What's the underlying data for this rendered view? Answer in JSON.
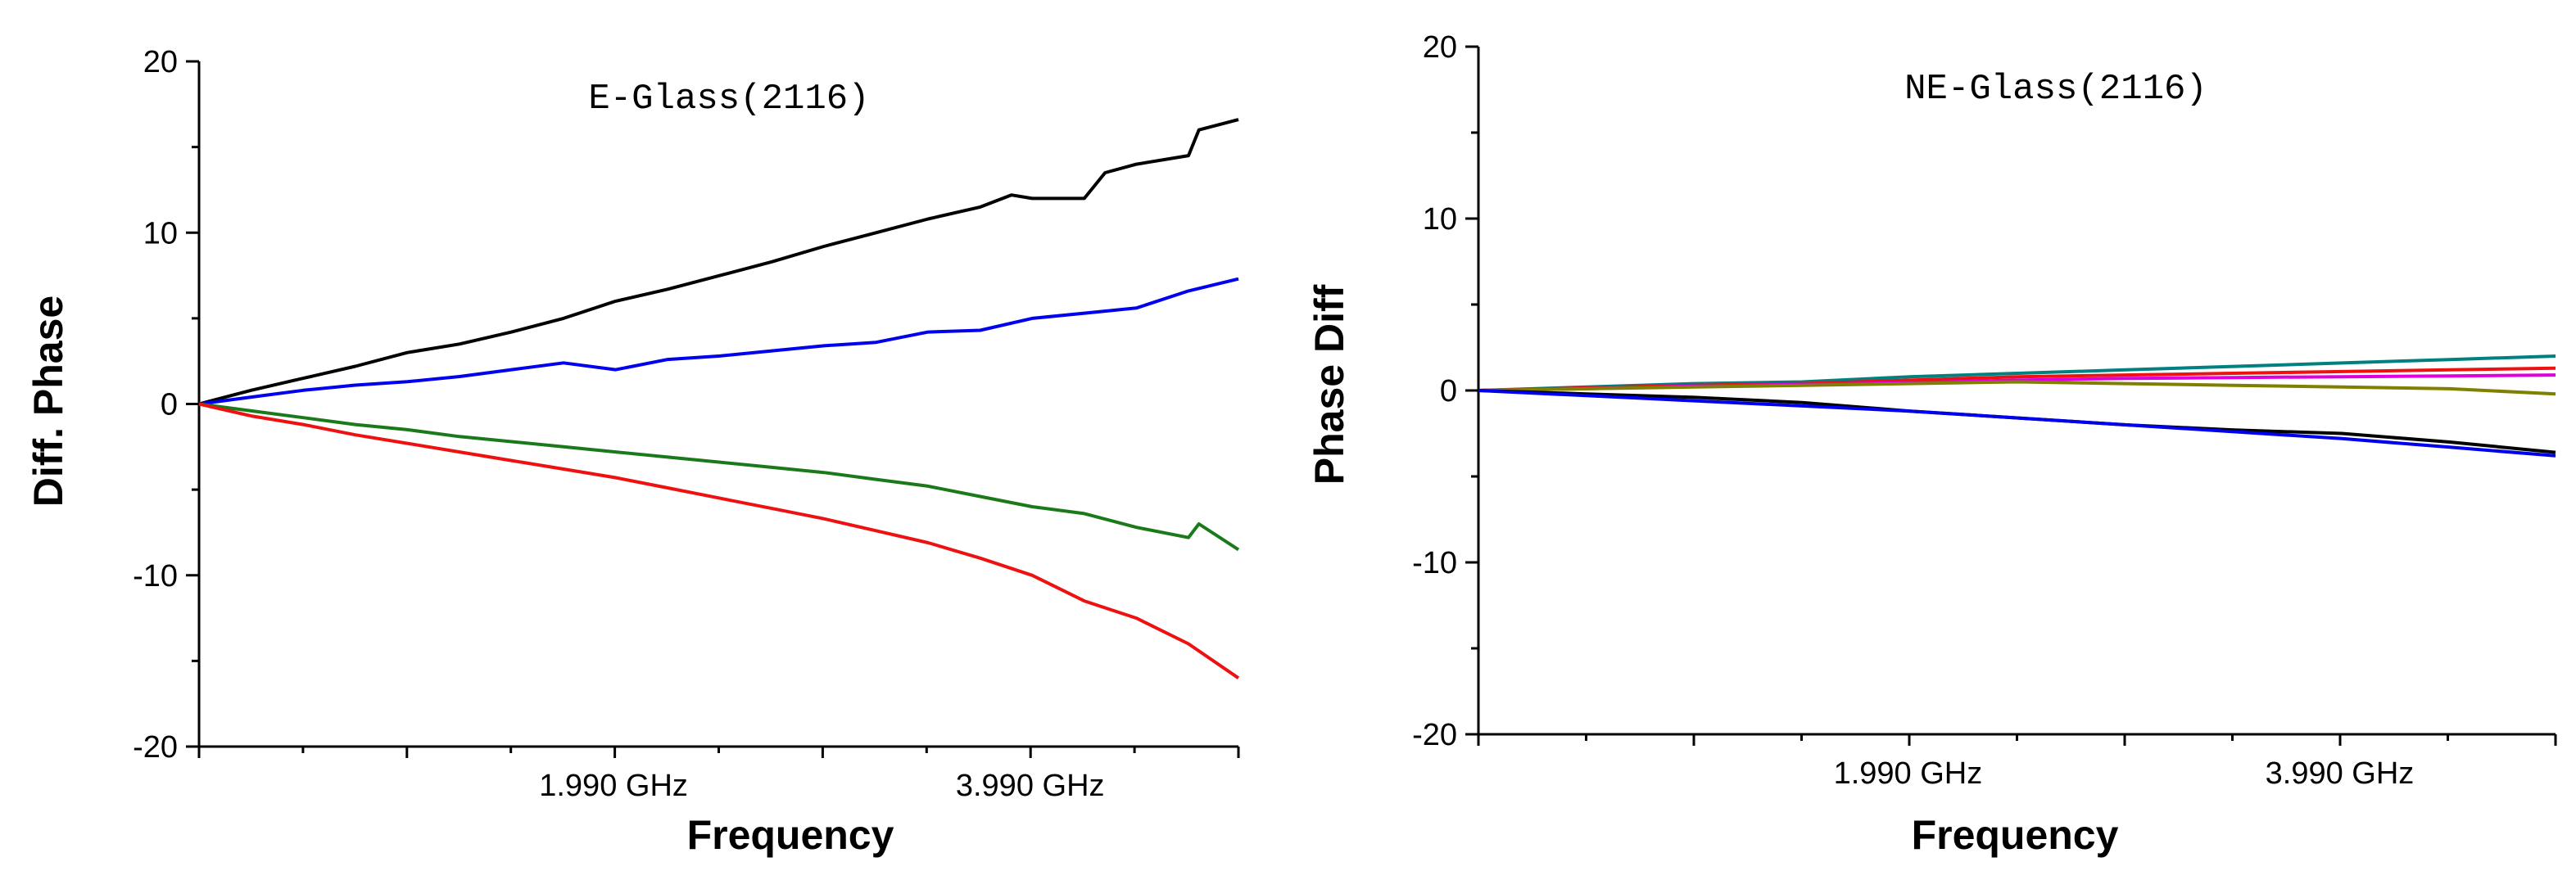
{
  "chart_data": [
    {
      "type": "line",
      "title": "E-Glass(2116)",
      "xlabel": "Frequency",
      "ylabel": "Diff. Phase",
      "xlim": [
        0,
        4.99
      ],
      "ylim": [
        -20,
        20
      ],
      "yticks": [
        20,
        10,
        0,
        -10,
        -20
      ],
      "ytick_labels": [
        "20",
        "10",
        "0",
        "-10",
        "-20"
      ],
      "xticks": [
        1.99,
        3.99
      ],
      "xtick_labels": [
        "1.990 GHz",
        "3.990 GHz"
      ],
      "series": [
        {
          "name": "black",
          "color": "#000000",
          "x": [
            0,
            0.25,
            0.5,
            0.75,
            1.0,
            1.25,
            1.5,
            1.75,
            2.0,
            2.25,
            2.5,
            2.75,
            3.0,
            3.25,
            3.5,
            3.75,
            3.9,
            4.0,
            4.25,
            4.35,
            4.5,
            4.75,
            4.8,
            4.99
          ],
          "y": [
            0,
            0.8,
            1.5,
            2.2,
            3.0,
            3.5,
            4.2,
            5.0,
            6.0,
            6.7,
            7.5,
            8.3,
            9.2,
            10.0,
            10.8,
            11.5,
            12.2,
            12.0,
            12.0,
            13.5,
            14.0,
            14.5,
            16.0,
            16.6
          ]
        },
        {
          "name": "blue",
          "color": "#0000ee",
          "x": [
            0,
            0.25,
            0.5,
            0.75,
            1.0,
            1.25,
            1.5,
            1.75,
            2.0,
            2.25,
            2.5,
            2.75,
            3.0,
            3.25,
            3.5,
            3.75,
            4.0,
            4.25,
            4.5,
            4.75,
            4.99
          ],
          "y": [
            0,
            0.4,
            0.8,
            1.1,
            1.3,
            1.6,
            2.0,
            2.4,
            2.0,
            2.6,
            2.8,
            3.1,
            3.4,
            3.6,
            4.2,
            4.3,
            5.0,
            5.3,
            5.6,
            6.6,
            7.3
          ]
        },
        {
          "name": "green",
          "color": "#1a7a1a",
          "x": [
            0,
            0.25,
            0.5,
            0.75,
            1.0,
            1.25,
            1.5,
            1.75,
            2.0,
            2.25,
            2.5,
            2.75,
            3.0,
            3.25,
            3.5,
            3.75,
            4.0,
            4.25,
            4.5,
            4.75,
            4.8,
            4.99
          ],
          "y": [
            0,
            -0.4,
            -0.8,
            -1.2,
            -1.5,
            -1.9,
            -2.2,
            -2.5,
            -2.8,
            -3.1,
            -3.4,
            -3.7,
            -4.0,
            -4.4,
            -4.8,
            -5.4,
            -6.0,
            -6.4,
            -7.2,
            -7.8,
            -7.0,
            -8.5
          ]
        },
        {
          "name": "red",
          "color": "#ee1111",
          "x": [
            0,
            0.25,
            0.5,
            0.75,
            1.0,
            1.25,
            1.5,
            1.75,
            2.0,
            2.25,
            2.5,
            2.75,
            3.0,
            3.25,
            3.5,
            3.75,
            4.0,
            4.25,
            4.5,
            4.75,
            4.99
          ],
          "y": [
            0,
            -0.7,
            -1.2,
            -1.8,
            -2.3,
            -2.8,
            -3.3,
            -3.8,
            -4.3,
            -4.9,
            -5.5,
            -6.1,
            -6.7,
            -7.4,
            -8.1,
            -9.0,
            -10.0,
            -11.5,
            -12.5,
            -14.0,
            -16.0
          ]
        }
      ]
    },
    {
      "type": "line",
      "title": "NE-Glass(2116)",
      "xlabel": "Frequency",
      "ylabel": "Phase Diff",
      "xlim": [
        0,
        4.99
      ],
      "ylim": [
        -20,
        20
      ],
      "yticks": [
        20,
        10,
        0,
        -10,
        -20
      ],
      "ytick_labels": [
        "20",
        "10",
        "0",
        "-10",
        "-20"
      ],
      "xticks": [
        1.99,
        3.99
      ],
      "xtick_labels": [
        "1.990 GHz",
        "3.990 GHz"
      ],
      "series": [
        {
          "name": "teal",
          "color": "#008080",
          "x": [
            0,
            0.5,
            1.0,
            1.5,
            2.0,
            2.5,
            3.0,
            3.5,
            4.0,
            4.5,
            4.99
          ],
          "y": [
            0,
            0.2,
            0.4,
            0.5,
            0.8,
            1.0,
            1.2,
            1.4,
            1.6,
            1.8,
            2.0
          ]
        },
        {
          "name": "red",
          "color": "#ee1111",
          "x": [
            0,
            0.5,
            1.0,
            1.5,
            2.0,
            2.5,
            3.0,
            3.5,
            4.0,
            4.5,
            4.99
          ],
          "y": [
            0,
            0.15,
            0.3,
            0.4,
            0.6,
            0.8,
            0.9,
            1.0,
            1.1,
            1.2,
            1.3
          ]
        },
        {
          "name": "magenta",
          "color": "#dd00dd",
          "x": [
            0,
            0.5,
            1.0,
            1.5,
            2.0,
            2.5,
            3.0,
            3.5,
            4.0,
            4.5,
            4.99
          ],
          "y": [
            0,
            0.1,
            0.25,
            0.35,
            0.45,
            0.6,
            0.7,
            0.75,
            0.8,
            0.85,
            0.9
          ]
        },
        {
          "name": "olive",
          "color": "#808000",
          "x": [
            0,
            0.5,
            1.0,
            1.5,
            2.0,
            2.5,
            3.0,
            3.5,
            4.0,
            4.5,
            4.99
          ],
          "y": [
            0,
            0.1,
            0.2,
            0.3,
            0.4,
            0.5,
            0.4,
            0.3,
            0.2,
            0.1,
            -0.2
          ]
        },
        {
          "name": "black",
          "color": "#000000",
          "x": [
            0,
            0.5,
            1.0,
            1.5,
            2.0,
            2.5,
            3.0,
            3.5,
            4.0,
            4.5,
            4.99
          ],
          "y": [
            0,
            -0.2,
            -0.4,
            -0.7,
            -1.2,
            -1.6,
            -2.0,
            -2.3,
            -2.5,
            -3.0,
            -3.6
          ]
        },
        {
          "name": "blue",
          "color": "#0000ee",
          "x": [
            0,
            0.5,
            1.0,
            1.5,
            2.0,
            2.5,
            3.0,
            3.5,
            4.0,
            4.5,
            4.99
          ],
          "y": [
            0,
            -0.3,
            -0.6,
            -0.9,
            -1.2,
            -1.6,
            -2.0,
            -2.4,
            -2.8,
            -3.3,
            -3.8
          ]
        }
      ]
    }
  ]
}
